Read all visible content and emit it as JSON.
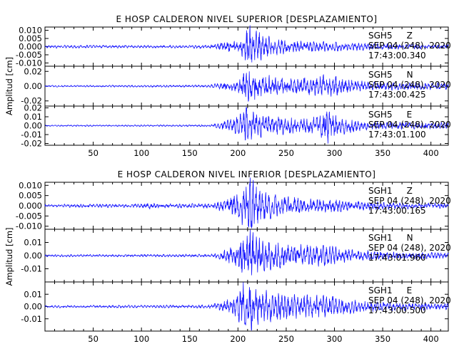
{
  "chart_data": [
    {
      "type": "line",
      "title": "E HOSP CALDERON NIVEL SUPERIOR [DESPLAZAMIENTO]",
      "ylabel": "Amplitud [cm]",
      "xlim": [
        0,
        418
      ],
      "xticks": [
        "50",
        "100",
        "150",
        "200",
        "250",
        "300",
        "350",
        "400"
      ],
      "channels": [
        {
          "station": "SGH5",
          "component": "Z",
          "date": "SEP 04 (248), 2020",
          "time": "17:43:00.340",
          "ylim": [
            -0.012,
            0.012
          ],
          "yticks": [
            "0.010",
            "0.005",
            "0.000",
            "-0.005",
            "-0.010"
          ],
          "envelope": [
            [
              0,
              0.0008
            ],
            [
              150,
              0.0008
            ],
            [
              175,
              0.0012
            ],
            [
              185,
              0.0025
            ],
            [
              200,
              0.003
            ],
            [
              205,
              0.007
            ],
            [
              210,
              0.0115
            ],
            [
              215,
              0.011
            ],
            [
              220,
              0.008
            ],
            [
              230,
              0.006
            ],
            [
              240,
              0.0045
            ],
            [
              260,
              0.0035
            ],
            [
              280,
              0.003
            ],
            [
              300,
              0.0025
            ],
            [
              330,
              0.002
            ],
            [
              360,
              0.0015
            ],
            [
              418,
              0.001
            ]
          ]
        },
        {
          "station": "SGH5",
          "component": "N",
          "date": "SEP 04 (248), 2020",
          "time": "17:43:00.425",
          "ylim": [
            -0.027,
            0.027
          ],
          "yticks": [
            "0.02",
            "0.00",
            "-0.02"
          ],
          "envelope": [
            [
              0,
              0.001
            ],
            [
              170,
              0.0015
            ],
            [
              180,
              0.004
            ],
            [
              200,
              0.007
            ],
            [
              208,
              0.02
            ],
            [
              212,
              0.025
            ],
            [
              220,
              0.016
            ],
            [
              240,
              0.011
            ],
            [
              260,
              0.01
            ],
            [
              280,
              0.011
            ],
            [
              290,
              0.014
            ],
            [
              300,
              0.012
            ],
            [
              320,
              0.007
            ],
            [
              340,
              0.005
            ],
            [
              418,
              0.004
            ]
          ]
        },
        {
          "station": "SGH5",
          "component": "E",
          "date": "SEP 04 (248), 2020",
          "time": "17:43:01.100",
          "ylim": [
            -0.022,
            0.022
          ],
          "yticks": [
            "0.02",
            "0.01",
            "0.00",
            "-0.01",
            "-0.02"
          ],
          "envelope": [
            [
              0,
              0.0007
            ],
            [
              170,
              0.001
            ],
            [
              180,
              0.003
            ],
            [
              200,
              0.009
            ],
            [
              208,
              0.018
            ],
            [
              215,
              0.016
            ],
            [
              225,
              0.011
            ],
            [
              250,
              0.009
            ],
            [
              270,
              0.008
            ],
            [
              285,
              0.011
            ],
            [
              292,
              0.019
            ],
            [
              300,
              0.011
            ],
            [
              320,
              0.006
            ],
            [
              340,
              0.004
            ],
            [
              418,
              0.003
            ]
          ]
        }
      ]
    },
    {
      "type": "line",
      "title": "E HOSP CALDERON NIVEL INFERIOR [DESPLAZAMIENTO]",
      "ylabel": "Amplitud [cm]",
      "xlim": [
        0,
        418
      ],
      "xticks": [
        "50",
        "100",
        "150",
        "200",
        "250",
        "300",
        "350",
        "400"
      ],
      "channels": [
        {
          "station": "SGH1",
          "component": "Z",
          "date": "SEP 04 (248), 2020",
          "time": "17:43:00.165",
          "ylim": [
            -0.0115,
            0.0115
          ],
          "yticks": [
            "0.010",
            "0.005",
            "0.000",
            "-0.005",
            "-0.010"
          ],
          "envelope": [
            [
              0,
              0.0007
            ],
            [
              100,
              0.0009
            ],
            [
              110,
              0.0015
            ],
            [
              120,
              0.0009
            ],
            [
              170,
              0.001
            ],
            [
              180,
              0.002
            ],
            [
              198,
              0.005
            ],
            [
              205,
              0.009
            ],
            [
              212,
              0.012
            ],
            [
              218,
              0.011
            ],
            [
              225,
              0.007
            ],
            [
              240,
              0.0045
            ],
            [
              260,
              0.0035
            ],
            [
              290,
              0.003
            ],
            [
              330,
              0.002
            ],
            [
              360,
              0.0015
            ],
            [
              418,
              0.0012
            ]
          ]
        },
        {
          "station": "SGH1",
          "component": "N",
          "date": "SEP 04 (248), 2020",
          "time": "17:43:01.960",
          "ylim": [
            -0.02,
            0.02
          ],
          "yticks": [
            "0.01",
            "0.00",
            "-0.01"
          ],
          "envelope": [
            [
              0,
              0.0008
            ],
            [
              170,
              0.001
            ],
            [
              180,
              0.002
            ],
            [
              198,
              0.007
            ],
            [
              205,
              0.016
            ],
            [
              212,
              0.018
            ],
            [
              220,
              0.012
            ],
            [
              240,
              0.009
            ],
            [
              260,
              0.0075
            ],
            [
              290,
              0.007
            ],
            [
              320,
              0.004
            ],
            [
              360,
              0.0025
            ],
            [
              418,
              0.002
            ]
          ]
        },
        {
          "station": "SGH1",
          "component": "E",
          "date": "SEP 04 (248), 2020",
          "time": "17:43:00.500",
          "ylim": [
            -0.02,
            0.02
          ],
          "yticks": [
            "0.01",
            "0.00",
            "-0.01"
          ],
          "envelope": [
            [
              0,
              0.0009
            ],
            [
              170,
              0.0012
            ],
            [
              180,
              0.003
            ],
            [
              198,
              0.008
            ],
            [
              205,
              0.017
            ],
            [
              212,
              0.018
            ],
            [
              220,
              0.013
            ],
            [
              240,
              0.01
            ],
            [
              260,
              0.0085
            ],
            [
              290,
              0.008
            ],
            [
              320,
              0.005
            ],
            [
              360,
              0.003
            ],
            [
              418,
              0.0025
            ]
          ]
        }
      ]
    }
  ]
}
